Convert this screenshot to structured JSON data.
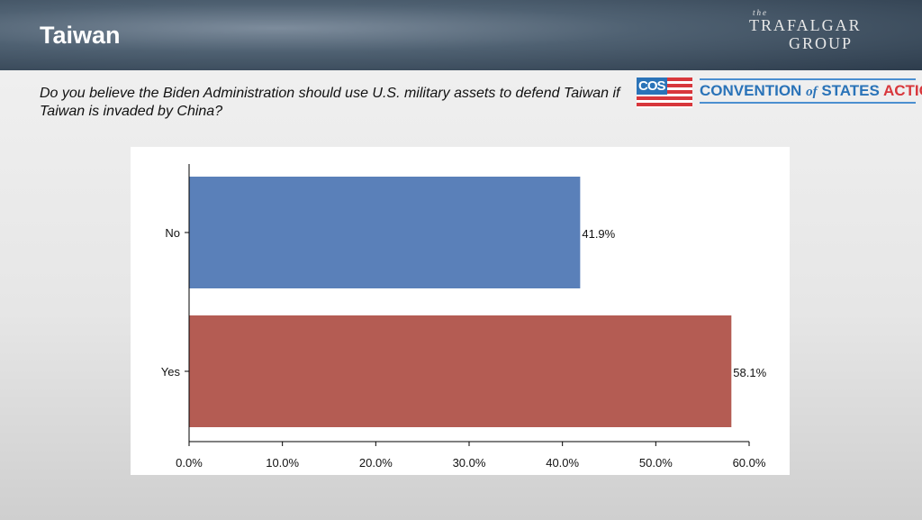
{
  "header": {
    "title": "Taiwan",
    "logo_the": "the",
    "logo_line1": "TRAFALGAR",
    "logo_line2": "GROUP"
  },
  "question": "Do you believe the Biden Administration should use U.S. military assets to defend Taiwan if Taiwan is invaded by China?",
  "sponsor": {
    "abbr": "COS",
    "name_a": "CONVENTION",
    "name_of": "of",
    "name_b": "STATES",
    "name_c": "ACTION"
  },
  "chart_data": {
    "type": "bar",
    "orientation": "horizontal",
    "categories": [
      "No",
      "Yes"
    ],
    "values": [
      41.9,
      58.1
    ],
    "value_labels": [
      "41.9%",
      "58.1%"
    ],
    "colors": [
      "#5a80b9",
      "#b45c53"
    ],
    "xlim": [
      0,
      60
    ],
    "xticks": [
      "0.0%",
      "10.0%",
      "20.0%",
      "30.0%",
      "40.0%",
      "50.0%",
      "60.0%"
    ],
    "title": "",
    "xlabel": "",
    "ylabel": "",
    "grid": false
  }
}
